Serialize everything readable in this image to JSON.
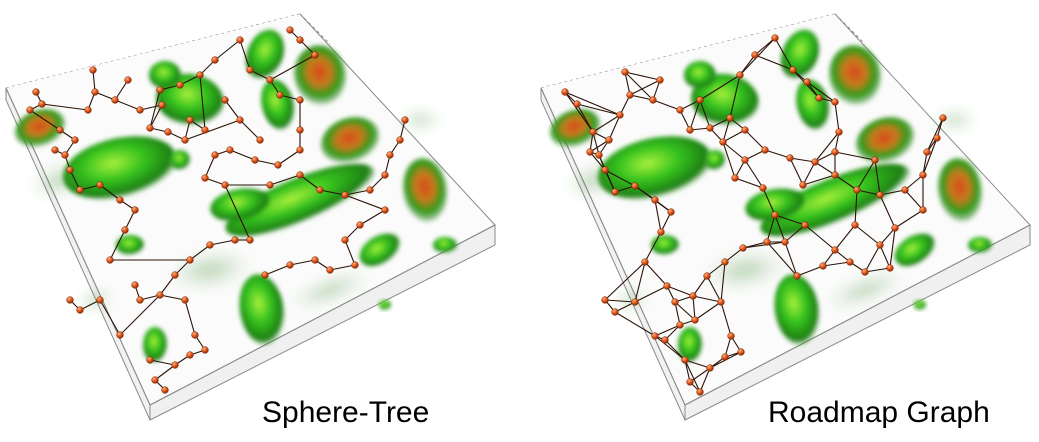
{
  "panels": [
    {
      "caption": "Sphere-Tree",
      "kind": "tree"
    },
    {
      "caption": "Roadmap Graph",
      "kind": "graph"
    }
  ],
  "colors": {
    "background": "#ffffff",
    "box_edge": "#8a8a8a",
    "blob_dark": "#1f7a12",
    "blob_mid": "#2fb51e",
    "blob_light": "#7be62a",
    "blob_hot": "#d2491d",
    "node_fill": "#e0561d",
    "node_edge": "#7a2a08",
    "edge_line": "#2a1206"
  }
}
